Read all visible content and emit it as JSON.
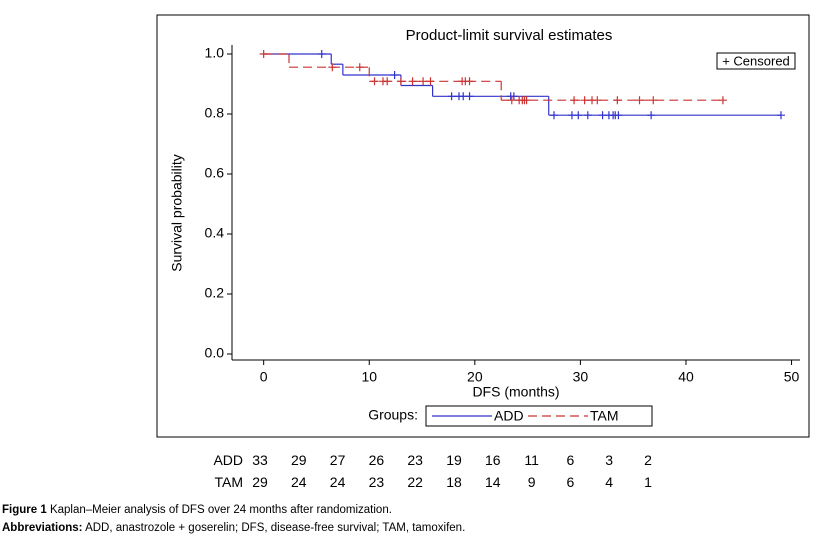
{
  "chart_data": {
    "type": "step",
    "title": "Product-limit survival estimates",
    "x_label": "DFS (months)",
    "y_label": "Survival probability",
    "xlim": [
      -3,
      50.8
    ],
    "ylim": [
      -0.02,
      1.03
    ],
    "xticks": [
      0,
      10,
      20,
      30,
      40,
      50
    ],
    "yticks": [
      {
        "value": 0,
        "label": "0.0"
      },
      0.2,
      0.4,
      0.6,
      0.8,
      {
        "value": 1,
        "label": "1.0"
      }
    ],
    "legend_title": "Groups:",
    "censored_label": "+ Censored",
    "series": [
      {
        "name": "ADD",
        "color": "#3333cc",
        "linestyle": "solid",
        "x": [
          0,
          6.4,
          7.5,
          13,
          16,
          27
        ],
        "values": [
          1,
          0.966,
          0.93,
          0.895,
          0.859,
          0.796
        ],
        "censored_x": [
          5.5,
          12.4,
          17.8,
          18.5,
          18.9,
          19.5,
          23.4,
          23.7,
          27.5,
          29.2,
          29.8,
          30.7,
          32.1,
          32.7,
          33.1,
          33.3,
          33.6,
          36.7,
          49
        ],
        "censored_values": [
          1,
          0.93,
          0.859,
          0.859,
          0.859,
          0.859,
          0.859,
          0.859,
          0.796,
          0.796,
          0.796,
          0.796,
          0.796,
          0.796,
          0.796,
          0.796,
          0.796,
          0.796,
          0.796
        ]
      },
      {
        "name": "TAM",
        "color": "#cc3333",
        "linestyle": "dashed",
        "x": [
          0,
          2.4,
          10,
          22.5
        ],
        "values": [
          1,
          0.956,
          0.909,
          0.846
        ],
        "censored_x": [
          0,
          6.5,
          9.1,
          10.5,
          11.3,
          11.7,
          13,
          14.1,
          15.1,
          15.8,
          18.8,
          19.1,
          19.5,
          23.5,
          24.2,
          24.5,
          24.7,
          24.9,
          29.4,
          30.4,
          31.1,
          31.6,
          33.5,
          35.6,
          36.9,
          43.5
        ],
        "censored_values": [
          1,
          0.956,
          0.956,
          0.909,
          0.909,
          0.909,
          0.909,
          0.909,
          0.909,
          0.909,
          0.909,
          0.909,
          0.909,
          0.846,
          0.846,
          0.846,
          0.846,
          0.846,
          0.846,
          0.846,
          0.846,
          0.846,
          0.846,
          0.846,
          0.846,
          0.846
        ]
      }
    ]
  },
  "risk_table": {
    "rows": [
      {
        "label": "ADD",
        "values": [
          33,
          29,
          27,
          26,
          23,
          19,
          16,
          11,
          6,
          3,
          2
        ]
      },
      {
        "label": "TAM",
        "values": [
          29,
          24,
          24,
          23,
          22,
          18,
          14,
          9,
          6,
          4,
          1
        ]
      }
    ]
  },
  "caption": {
    "figure_label": "Figure 1",
    "figure_text": "Kaplan–Meier analysis of DFS over 24 months after randomization.",
    "abbrev_label": "Abbreviations:",
    "abbrev_text": "ADD, anastrozole + goserelin; DFS, disease-free survival; TAM, tamoxifen."
  }
}
